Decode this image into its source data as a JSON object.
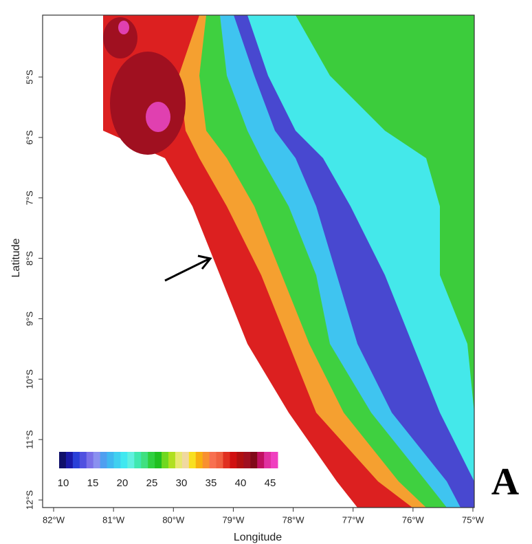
{
  "map": {
    "x_axis": {
      "label": "Longitude",
      "ticks": [
        {
          "value": 82,
          "label": "82°W"
        },
        {
          "value": 81,
          "label": "81°W"
        },
        {
          "value": 80,
          "label": "80°W"
        },
        {
          "value": 79,
          "label": "79°W"
        },
        {
          "value": 78,
          "label": "78°W"
        },
        {
          "value": 77,
          "label": "77°W"
        },
        {
          "value": 76,
          "label": "76°W"
        },
        {
          "value": 75,
          "label": "75°W"
        }
      ]
    },
    "y_axis": {
      "label": "Latitude",
      "ticks": [
        {
          "value": 5,
          "label": "5°S"
        },
        {
          "value": 6,
          "label": "6°S"
        },
        {
          "value": 7,
          "label": "7°S"
        },
        {
          "value": 8,
          "label": "8°S"
        },
        {
          "value": 9,
          "label": "9°S"
        },
        {
          "value": 10,
          "label": "10°S"
        },
        {
          "value": 11,
          "label": "11°S"
        },
        {
          "value": 12,
          "label": "12°S"
        }
      ]
    },
    "colorbar": {
      "ticks": [
        10,
        15,
        20,
        25,
        30,
        35,
        40,
        45
      ],
      "colors": [
        "#10106a",
        "#1a1aa8",
        "#2a40d8",
        "#5050e0",
        "#7a70e8",
        "#8a90f0",
        "#4f9ff0",
        "#40b8f0",
        "#40d0f0",
        "#40e8f0",
        "#60f0e0",
        "#40e8b0",
        "#40e080",
        "#30d040",
        "#20c020",
        "#70d820",
        "#b0e020",
        "#e8e870",
        "#f0d8a0",
        "#f8e020",
        "#f8b010",
        "#f89030",
        "#f87050",
        "#f06040",
        "#e03020",
        "#d01010",
        "#b01010",
        "#a01020",
        "#800818",
        "#c01060",
        "#e030a0",
        "#f040c0"
      ]
    },
    "panel_label": "A"
  }
}
